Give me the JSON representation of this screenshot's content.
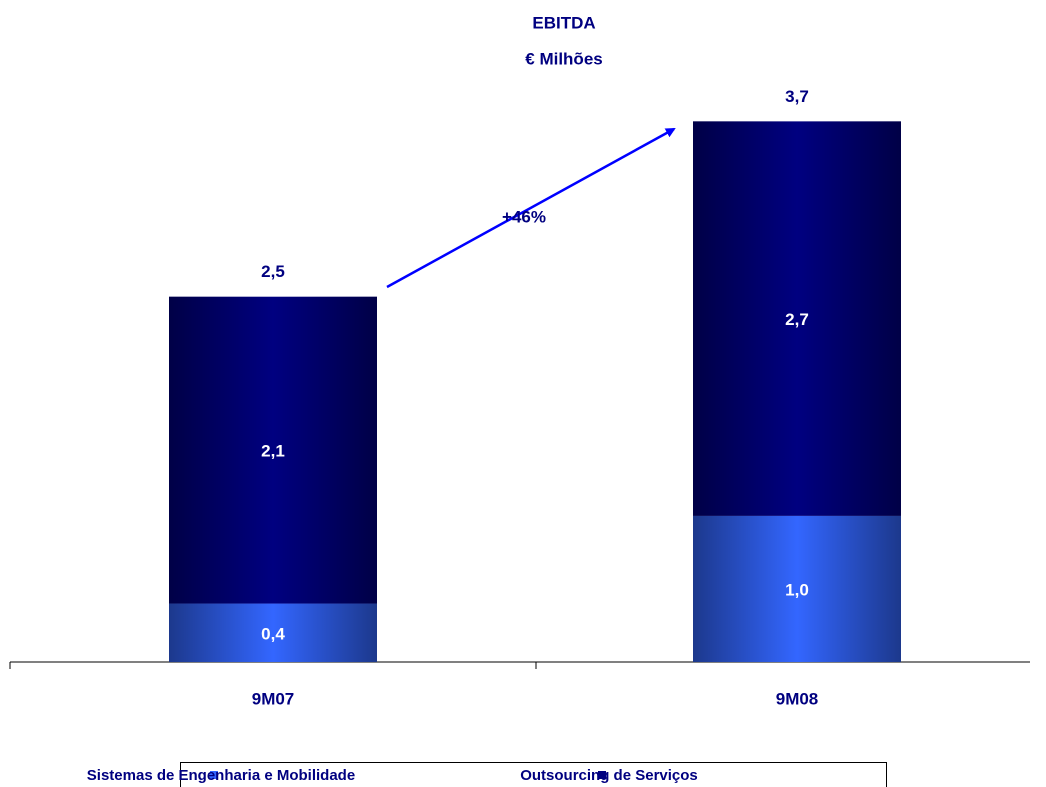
{
  "chart_data": {
    "type": "stacked_bar",
    "title": "EBITDA",
    "subtitle": "€ Milhões",
    "categories": [
      "9M07",
      "9M08"
    ],
    "series": [
      {
        "name": "Sistemas de Engenharia e Mobilidade",
        "color": "#3366ff",
        "values": [
          0.4,
          1.0
        ],
        "value_labels": [
          "0,4",
          "1,0"
        ]
      },
      {
        "name": "Outsourcing de Serviços",
        "color": "#000080",
        "values": [
          2.1,
          2.7
        ],
        "value_labels": [
          "2,1",
          "2,7"
        ]
      }
    ],
    "totals": [
      2.5,
      3.7
    ],
    "total_labels": [
      "2,5",
      "3,7"
    ],
    "annotation": "+46%",
    "ylim": [
      0,
      4.12
    ],
    "legend": "bottom"
  }
}
